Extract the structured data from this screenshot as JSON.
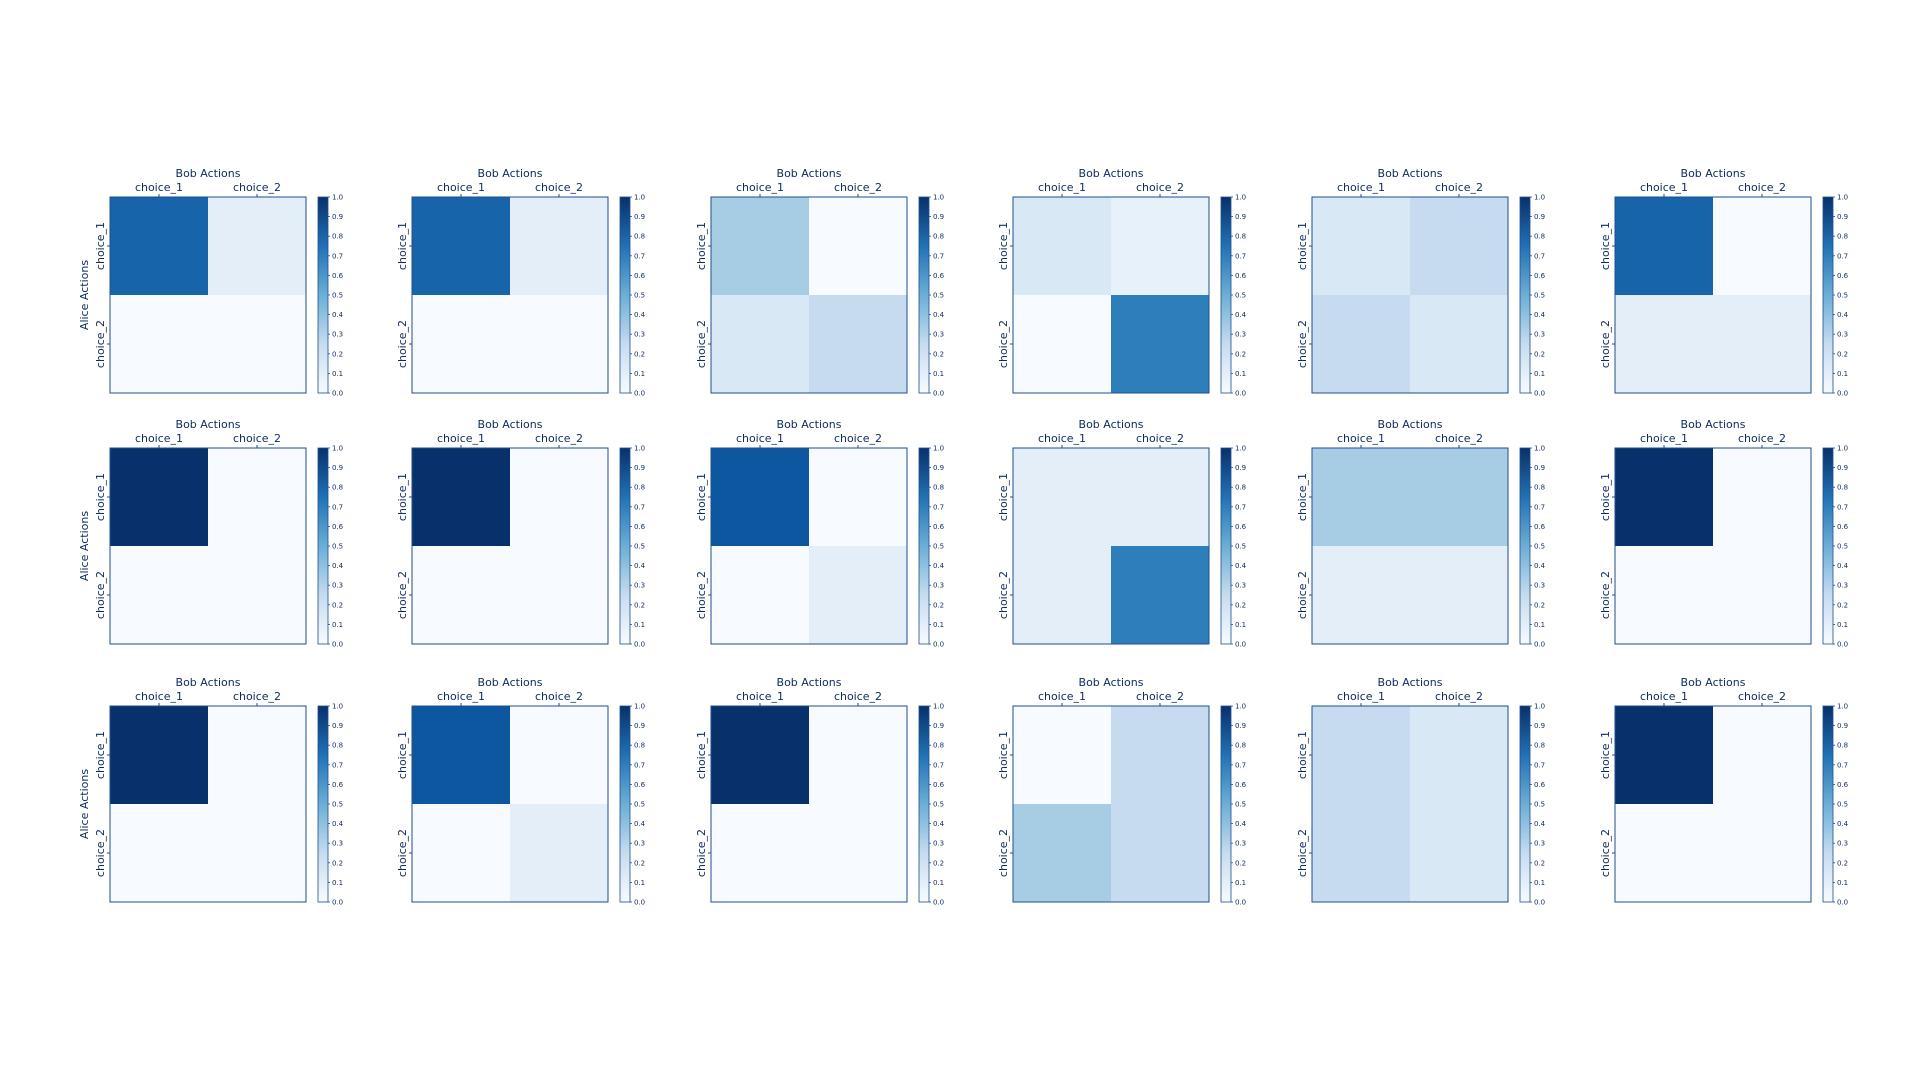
{
  "chart_data": {
    "type": "heatmap",
    "layout": {
      "rows": 3,
      "cols": 6
    },
    "panel_title": "Bob Actions",
    "x_tick_labels": [
      "choice_1",
      "choice_2"
    ],
    "y_label": "Alice Actions",
    "y_tick_labels": [
      "choice_1",
      "choice_2"
    ],
    "colorbar": {
      "min": 0.0,
      "max": 1.0,
      "ticks": [
        "0.0",
        "0.1",
        "0.2",
        "0.3",
        "0.4",
        "0.5",
        "0.6",
        "0.7",
        "0.8",
        "0.9",
        "1.0"
      ]
    },
    "colormap": {
      "low": "#f7fbff",
      "high": "#08306b"
    },
    "panels": [
      {
        "row": 0,
        "col": 0,
        "ylabel_shown": true,
        "values": [
          [
            0.8,
            0.1
          ],
          [
            0.0,
            0.0
          ]
        ]
      },
      {
        "row": 0,
        "col": 1,
        "ylabel_shown": false,
        "values": [
          [
            0.8,
            0.1
          ],
          [
            0.0,
            0.0
          ]
        ]
      },
      {
        "row": 0,
        "col": 2,
        "ylabel_shown": false,
        "values": [
          [
            0.35,
            0.0
          ],
          [
            0.15,
            0.25
          ]
        ]
      },
      {
        "row": 0,
        "col": 3,
        "ylabel_shown": false,
        "values": [
          [
            0.15,
            0.08
          ],
          [
            0.0,
            0.7
          ]
        ]
      },
      {
        "row": 0,
        "col": 4,
        "ylabel_shown": false,
        "values": [
          [
            0.15,
            0.25
          ],
          [
            0.25,
            0.15
          ]
        ]
      },
      {
        "row": 0,
        "col": 5,
        "ylabel_shown": false,
        "values": [
          [
            0.8,
            0.0
          ],
          [
            0.1,
            0.1
          ]
        ]
      },
      {
        "row": 1,
        "col": 0,
        "ylabel_shown": true,
        "values": [
          [
            1.0,
            0.0
          ],
          [
            0.0,
            0.0
          ]
        ]
      },
      {
        "row": 1,
        "col": 1,
        "ylabel_shown": false,
        "values": [
          [
            1.0,
            0.0
          ],
          [
            0.0,
            0.0
          ]
        ]
      },
      {
        "row": 1,
        "col": 2,
        "ylabel_shown": false,
        "values": [
          [
            0.85,
            0.0
          ],
          [
            0.0,
            0.1
          ]
        ]
      },
      {
        "row": 1,
        "col": 3,
        "ylabel_shown": false,
        "values": [
          [
            0.1,
            0.1
          ],
          [
            0.1,
            0.7
          ]
        ]
      },
      {
        "row": 1,
        "col": 4,
        "ylabel_shown": false,
        "values": [
          [
            0.35,
            0.35
          ],
          [
            0.1,
            0.1
          ]
        ]
      },
      {
        "row": 1,
        "col": 5,
        "ylabel_shown": false,
        "values": [
          [
            1.0,
            0.0
          ],
          [
            0.0,
            0.0
          ]
        ]
      },
      {
        "row": 2,
        "col": 0,
        "ylabel_shown": true,
        "values": [
          [
            1.0,
            0.0
          ],
          [
            0.0,
            0.0
          ]
        ]
      },
      {
        "row": 2,
        "col": 1,
        "ylabel_shown": false,
        "values": [
          [
            0.85,
            0.0
          ],
          [
            0.0,
            0.1
          ]
        ]
      },
      {
        "row": 2,
        "col": 2,
        "ylabel_shown": false,
        "values": [
          [
            1.0,
            0.0
          ],
          [
            0.0,
            0.0
          ]
        ]
      },
      {
        "row": 2,
        "col": 3,
        "ylabel_shown": false,
        "values": [
          [
            0.0,
            0.25
          ],
          [
            0.35,
            0.25
          ]
        ]
      },
      {
        "row": 2,
        "col": 4,
        "ylabel_shown": false,
        "values": [
          [
            0.25,
            0.15
          ],
          [
            0.25,
            0.15
          ]
        ]
      },
      {
        "row": 2,
        "col": 5,
        "ylabel_shown": false,
        "values": [
          [
            1.0,
            0.0
          ],
          [
            0.0,
            0.0
          ]
        ]
      }
    ]
  }
}
